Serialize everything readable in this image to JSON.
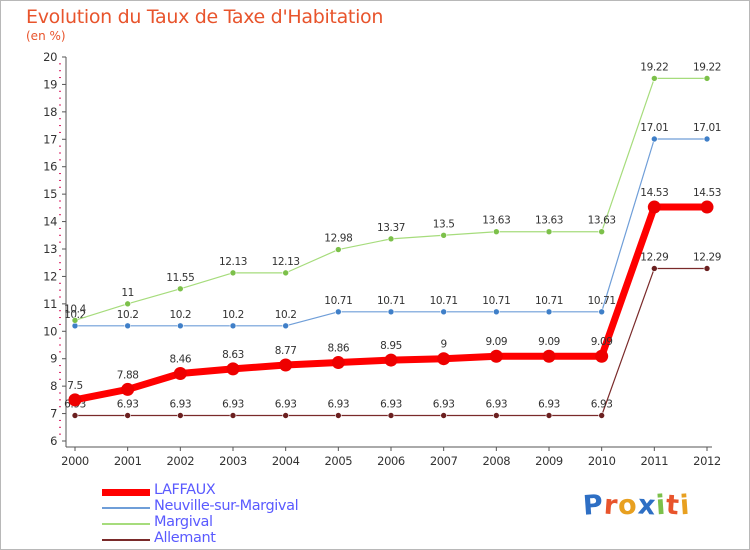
{
  "title": "Evolution du Taux de Taxe d'Habitation",
  "unit": "(en %)",
  "logo": {
    "letters": [
      "P",
      "r",
      "o",
      "x",
      "i",
      "t",
      "i"
    ],
    "colors": [
      "#2e6fc4",
      "#e8542c",
      "#e8a020",
      "#2e6fc4",
      "#7cc04a",
      "#e8542c",
      "#e8a020"
    ]
  },
  "chart_data": {
    "type": "line",
    "title": "Evolution du Taux de Taxe d'Habitation",
    "ylabel": "(en %)",
    "xlabel": "",
    "x": [
      "2000",
      "2001",
      "2002",
      "2003",
      "2004",
      "2005",
      "2006",
      "2007",
      "2008",
      "2009",
      "2010",
      "2011",
      "2012"
    ],
    "ylim": [
      6,
      20
    ],
    "yticks": [
      "6",
      "7",
      "8",
      "9",
      "10",
      "11",
      "12",
      "13",
      "14",
      "15",
      "16",
      "17",
      "18",
      "19",
      "20"
    ],
    "grid": false,
    "legend_position": "bottom-left",
    "series": [
      {
        "name": "Allemant",
        "color": "#7a2a2a",
        "marker": "#6b2020",
        "width": 1.2,
        "radius": 3,
        "values": [
          6.93,
          6.93,
          6.93,
          6.93,
          6.93,
          6.93,
          6.93,
          6.93,
          6.93,
          6.93,
          6.93,
          12.29,
          12.29
        ],
        "labels": [
          "6.93",
          "6.93",
          "6.93",
          "6.93",
          "6.93",
          "6.93",
          "6.93",
          "6.93",
          "6.93",
          "6.93",
          "6.93",
          "12.29",
          "12.29"
        ]
      },
      {
        "name": "Neuville-sur-Margival",
        "color": "#6f9ed8",
        "marker": "#3f7fc8",
        "width": 1.2,
        "radius": 3,
        "values": [
          10.2,
          10.2,
          10.2,
          10.2,
          10.2,
          10.71,
          10.71,
          10.71,
          10.71,
          10.71,
          10.71,
          17.01,
          17.01
        ],
        "labels": [
          "10.2",
          "10.2",
          "10.2",
          "10.2",
          "10.2",
          "10.71",
          "10.71",
          "10.71",
          "10.71",
          "10.71",
          "10.71",
          "17.01",
          "17.01"
        ]
      },
      {
        "name": "Margival",
        "color": "#a6dc7c",
        "marker": "#7cc04a",
        "width": 1.2,
        "radius": 3,
        "values": [
          10.4,
          11,
          11.55,
          12.13,
          12.13,
          12.98,
          13.37,
          13.5,
          13.63,
          13.63,
          13.63,
          19.22,
          19.22
        ],
        "labels": [
          "10.4",
          "11",
          "11.55",
          "12.13",
          "12.13",
          "12.98",
          "13.37",
          "13.5",
          "13.63",
          "13.63",
          "13.63",
          "19.22",
          "19.22"
        ]
      },
      {
        "name": "LAFFAUX",
        "color": "#ff0000",
        "marker": "#ee0000",
        "width": 7,
        "radius": 6.5,
        "values": [
          7.5,
          7.88,
          8.46,
          8.63,
          8.77,
          8.86,
          8.95,
          9,
          9.09,
          9.09,
          9.09,
          14.53,
          14.53
        ],
        "labels": [
          "7.5",
          "7.88",
          "8.46",
          "8.63",
          "8.77",
          "8.86",
          "8.95",
          "9",
          "9.09",
          "9.09",
          "9.09",
          "14.53",
          "14.53"
        ]
      }
    ],
    "legend": [
      {
        "name": "LAFFAUX",
        "color": "#ff0000",
        "thickness": 7
      },
      {
        "name": "Neuville-sur-Margival",
        "color": "#6f9ed8",
        "thickness": 2
      },
      {
        "name": "Margival",
        "color": "#a6dc7c",
        "thickness": 2
      },
      {
        "name": "Allemant",
        "color": "#7a2a2a",
        "thickness": 2
      }
    ]
  }
}
